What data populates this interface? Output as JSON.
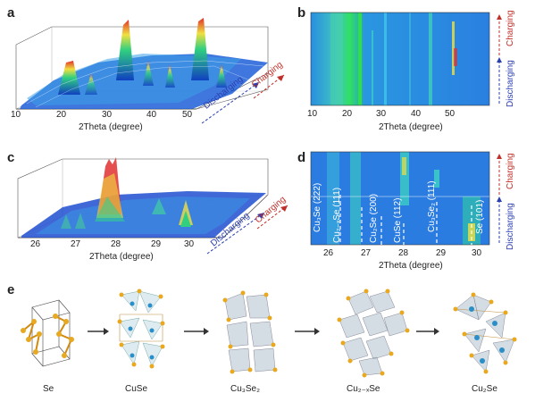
{
  "figure": {
    "panel_labels": [
      "a",
      "b",
      "c",
      "d",
      "e"
    ],
    "x_axis_title": "2Theta (degree)",
    "direction_labels": {
      "discharging": "Discharging",
      "charging": "Charging"
    },
    "panel_a": {
      "ticks": [
        "10",
        "20",
        "30",
        "40",
        "50"
      ]
    },
    "panel_b": {
      "ticks": [
        "10",
        "20",
        "30",
        "40",
        "50"
      ]
    },
    "panel_c": {
      "ticks": [
        "26",
        "27",
        "28",
        "29",
        "30"
      ]
    },
    "panel_d": {
      "ticks": [
        "26",
        "27",
        "28",
        "29",
        "30"
      ],
      "peaks": [
        "Cu₃Se (222)",
        "Cu₂₋ₓSe (111)",
        "Cu₂Se (200)",
        "CuSe (112)",
        "Cu₃Se₂ (111)",
        "Se (101)"
      ]
    },
    "panel_e": {
      "structures": [
        "Se",
        "CuSe",
        "Cu₃Se₂",
        "Cu₂₋ₓSe",
        "Cu₂Se"
      ]
    },
    "colors": {
      "charging": "#c0302a",
      "discharging": "#2a3fb0",
      "heatmap_base": "#2f8fe0",
      "atom_se": "#e0a020",
      "atom_cu": "#2a8fc8"
    }
  }
}
